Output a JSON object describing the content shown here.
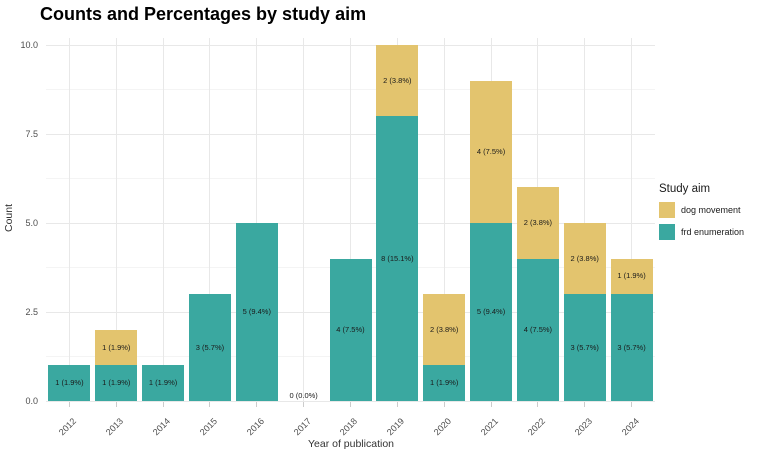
{
  "chart_data": {
    "type": "bar",
    "stacked": true,
    "title": "Counts and Percentages by study aim",
    "xlabel": "Year of publication",
    "ylabel": "Count",
    "categories": [
      "2012",
      "2013",
      "2014",
      "2015",
      "2016",
      "2017",
      "2018",
      "2019",
      "2020",
      "2021",
      "2022",
      "2023",
      "2024"
    ],
    "series": [
      {
        "name": "frd enumeration",
        "color": "#3aa8a0",
        "values": [
          1,
          1,
          1,
          3,
          5,
          0,
          4,
          8,
          1,
          5,
          4,
          3,
          3
        ],
        "labels": [
          "1 (1.9%)",
          "1 (1.9%)",
          "1 (1.9%)",
          "3 (5.7%)",
          "5 (9.4%)",
          "",
          "4 (7.5%)",
          "8 (15.1%)",
          "1 (1.9%)",
          "5 (9.4%)",
          "4 (7.5%)",
          "3 (5.7%)",
          "3 (5.7%)"
        ]
      },
      {
        "name": "dog movement",
        "color": "#e3c46e",
        "values": [
          0,
          1,
          0,
          0,
          0,
          0,
          0,
          2,
          2,
          4,
          2,
          2,
          1
        ],
        "labels": [
          "",
          "1 (1.9%)",
          "",
          "",
          "",
          "",
          "",
          "2 (3.8%)",
          "2 (3.8%)",
          "4 (7.5%)",
          "2 (3.8%)",
          "2 (3.8%)",
          "1 (1.9%)"
        ]
      }
    ],
    "zero_label": {
      "category": "2017",
      "text": "0 (0.0%)"
    },
    "ylim": [
      0,
      10
    ],
    "yticks": [
      {
        "value": 0,
        "label": "0.0"
      },
      {
        "value": 2.5,
        "label": "2.5"
      },
      {
        "value": 5,
        "label": "5.0"
      },
      {
        "value": 7.5,
        "label": "7.5"
      },
      {
        "value": 10,
        "label": "10.0"
      }
    ],
    "yminor": [
      1.25,
      3.75,
      6.25,
      8.75
    ],
    "grid": {
      "major_color": "#e8e8e8",
      "minor_color": "#f4f4f4"
    },
    "legend": {
      "title": "Study aim",
      "items": [
        {
          "label": "dog movement",
          "color": "#e3c46e"
        },
        {
          "label": "frd enumeration",
          "color": "#3aa8a0"
        }
      ]
    }
  }
}
